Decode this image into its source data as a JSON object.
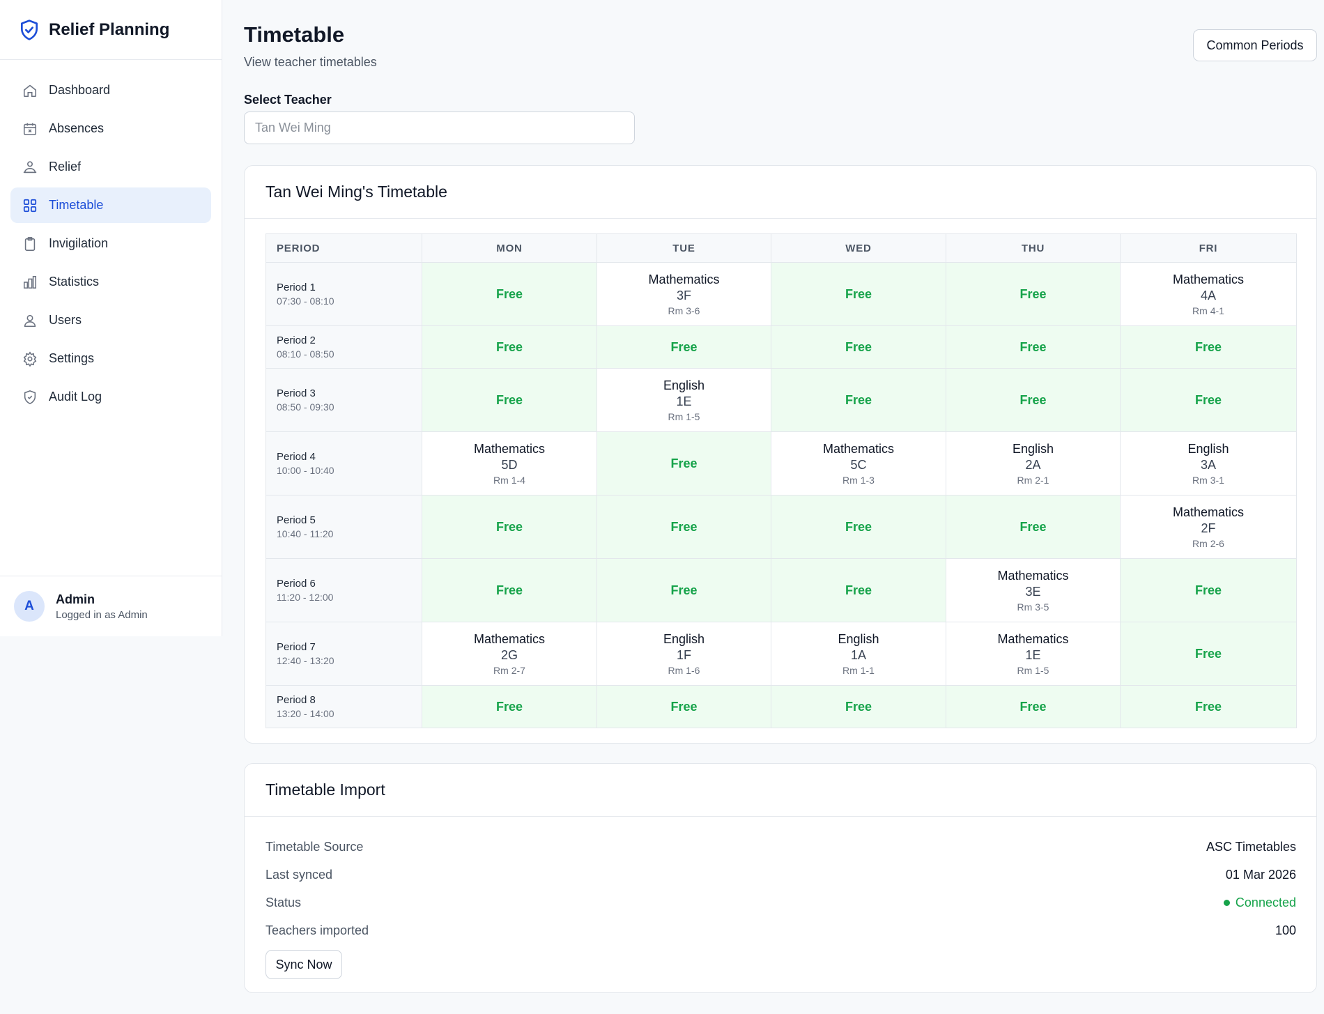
{
  "app": {
    "title": "Relief Planning",
    "logo_icon": "shield-check-icon"
  },
  "sidebar": {
    "items": [
      {
        "label": "Dashboard",
        "icon": "home-icon",
        "active": false
      },
      {
        "label": "Absences",
        "icon": "calendar-x-icon",
        "active": false
      },
      {
        "label": "Relief",
        "icon": "users-icon",
        "active": false
      },
      {
        "label": "Timetable",
        "icon": "grid-icon",
        "active": true
      },
      {
        "label": "Invigilation",
        "icon": "clipboard-icon",
        "active": false
      },
      {
        "label": "Statistics",
        "icon": "bar-chart-icon",
        "active": false
      },
      {
        "label": "Users",
        "icon": "user-icon",
        "active": false
      },
      {
        "label": "Settings",
        "icon": "gear-icon",
        "active": false
      },
      {
        "label": "Audit Log",
        "icon": "shield-icon",
        "active": false
      }
    ],
    "user": {
      "initial": "A",
      "name": "Admin",
      "role": "Logged in as Admin"
    }
  },
  "header": {
    "title": "Timetable",
    "subtitle": "View teacher timetables",
    "common_periods_label": "Common Periods"
  },
  "teacher_select": {
    "label": "Select Teacher",
    "placeholder": "Tan Wei Ming"
  },
  "timetable": {
    "title": "Tan Wei Ming's Timetable",
    "columns": [
      "PERIOD",
      "MON",
      "TUE",
      "WED",
      "THU",
      "FRI"
    ],
    "free_label": "Free",
    "rows": [
      {
        "period": "Period 1",
        "time": "07:30 - 08:10",
        "cells": [
          null,
          {
            "subject": "Mathematics",
            "class": "3F",
            "room": "Rm 3-6"
          },
          null,
          null,
          {
            "subject": "Mathematics",
            "class": "4A",
            "room": "Rm 4-1"
          }
        ]
      },
      {
        "period": "Period 2",
        "time": "08:10 - 08:50",
        "cells": [
          null,
          null,
          null,
          null,
          null
        ]
      },
      {
        "period": "Period 3",
        "time": "08:50 - 09:30",
        "cells": [
          null,
          {
            "subject": "English",
            "class": "1E",
            "room": "Rm 1-5"
          },
          null,
          null,
          null
        ]
      },
      {
        "period": "Period 4",
        "time": "10:00 - 10:40",
        "cells": [
          {
            "subject": "Mathematics",
            "class": "5D",
            "room": "Rm 1-4"
          },
          null,
          {
            "subject": "Mathematics",
            "class": "5C",
            "room": "Rm 1-3"
          },
          {
            "subject": "English",
            "class": "2A",
            "room": "Rm 2-1"
          },
          {
            "subject": "English",
            "class": "3A",
            "room": "Rm 3-1"
          }
        ]
      },
      {
        "period": "Period 5",
        "time": "10:40 - 11:20",
        "cells": [
          null,
          null,
          null,
          null,
          {
            "subject": "Mathematics",
            "class": "2F",
            "room": "Rm 2-6"
          }
        ]
      },
      {
        "period": "Period 6",
        "time": "11:20 - 12:00",
        "cells": [
          null,
          null,
          null,
          {
            "subject": "Mathematics",
            "class": "3E",
            "room": "Rm 3-5"
          },
          null
        ]
      },
      {
        "period": "Period 7",
        "time": "12:40 - 13:20",
        "cells": [
          {
            "subject": "Mathematics",
            "class": "2G",
            "room": "Rm 2-7"
          },
          {
            "subject": "English",
            "class": "1F",
            "room": "Rm 1-6"
          },
          {
            "subject": "English",
            "class": "1A",
            "room": "Rm 1-1"
          },
          {
            "subject": "Mathematics",
            "class": "1E",
            "room": "Rm 1-5"
          },
          null
        ]
      },
      {
        "period": "Period 8",
        "time": "13:20 - 14:00",
        "cells": [
          null,
          null,
          null,
          null,
          null
        ]
      }
    ]
  },
  "import": {
    "title": "Timetable Import",
    "rows": [
      {
        "label": "Timetable Source",
        "value": "ASC Timetables"
      },
      {
        "label": "Last synced",
        "value": "01 Mar 2026"
      },
      {
        "label": "Status",
        "value": "Connected",
        "status": "ok"
      },
      {
        "label": "Teachers imported",
        "value": "100"
      }
    ],
    "sync_label": "Sync Now"
  },
  "colors": {
    "accent": "#1d4ed8",
    "active_bg": "#e8f0fc",
    "free_bg": "#eefcf1",
    "free_text": "#16a34a"
  }
}
